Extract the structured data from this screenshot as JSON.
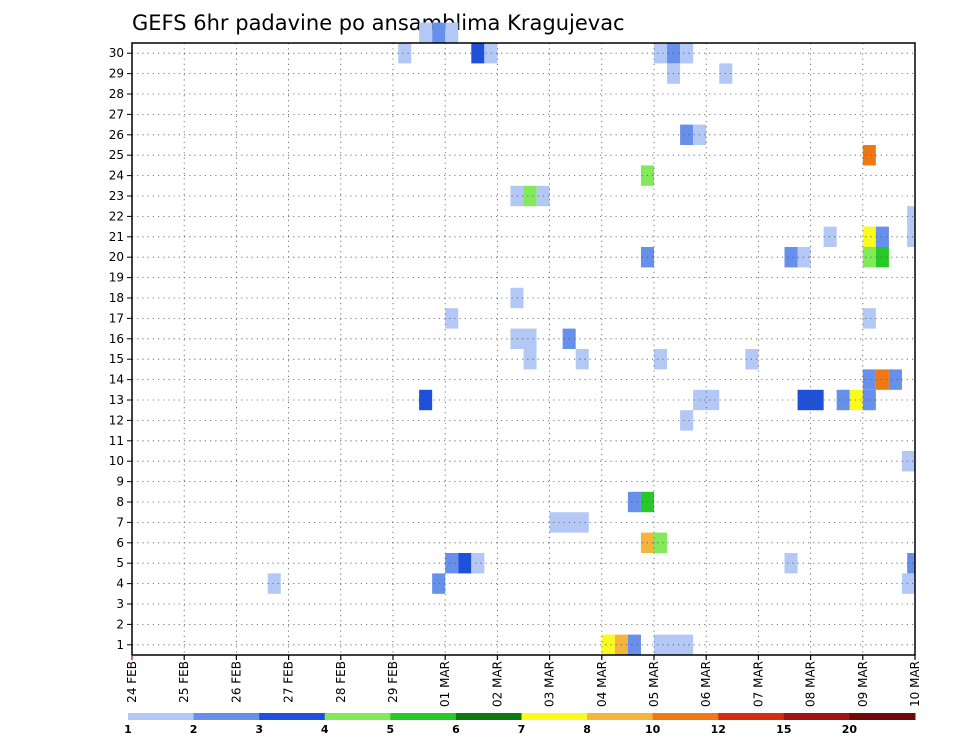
{
  "chart_data": {
    "type": "heatmap",
    "title": "GEFS 6hr padavine po ansamblima Kragujevac",
    "xlabel": "",
    "ylabel": "",
    "y_categories": [
      "1",
      "2",
      "3",
      "4",
      "5",
      "6",
      "7",
      "8",
      "9",
      "10",
      "11",
      "12",
      "13",
      "14",
      "15",
      "16",
      "17",
      "18",
      "19",
      "20",
      "21",
      "22",
      "23",
      "24",
      "25",
      "26",
      "27",
      "28",
      "29",
      "30"
    ],
    "x_tick_labels": [
      "24 FEB",
      "25 FEB",
      "26 FEB",
      "27 FEB",
      "28 FEB",
      "29 FEB",
      "01 MAR",
      "02 MAR",
      "03 MAR",
      "04 MAR",
      "05 MAR",
      "06 MAR",
      "07 MAR",
      "08 MAR",
      "09 MAR",
      "10 MAR"
    ],
    "x_range_days": [
      0,
      15
    ],
    "grid": true,
    "colorbar": {
      "placement": "bottom",
      "labels": [
        "1",
        "2",
        "3",
        "4",
        "5",
        "6",
        "7",
        "8",
        "10",
        "12",
        "15",
        "20"
      ],
      "colors": [
        "#b4c8f5",
        "#6690ea",
        "#1e50dc",
        "#82ea5a",
        "#28c828",
        "#0f780f",
        "#fafa1e",
        "#f5b43c",
        "#f07814",
        "#d22d0f",
        "#a01414",
        "#6e0a0a"
      ]
    },
    "cells": [
      {
        "x": 6.0,
        "w": 0.25,
        "y": 30,
        "c": 0
      },
      {
        "x": 5.75,
        "w": 0.25,
        "y": 30,
        "c": 1
      },
      {
        "x": 5.5,
        "w": 0.25,
        "y": 30,
        "c": 0
      },
      {
        "x": 5.1,
        "w": 0.25,
        "y": 29,
        "c": 0
      },
      {
        "x": 6.5,
        "w": 0.25,
        "y": 29,
        "c": 2
      },
      {
        "x": 6.75,
        "w": 0.25,
        "y": 29,
        "c": 0
      },
      {
        "x": 10.0,
        "w": 0.25,
        "y": 29,
        "c": 0
      },
      {
        "x": 10.25,
        "w": 0.25,
        "y": 29,
        "c": 1
      },
      {
        "x": 10.5,
        "w": 0.25,
        "y": 29,
        "c": 0
      },
      {
        "x": 10.25,
        "w": 0.25,
        "y": 28,
        "c": 0
      },
      {
        "x": 11.25,
        "w": 0.25,
        "y": 28,
        "c": 0
      },
      {
        "x": 10.5,
        "w": 0.25,
        "y": 25,
        "c": 1
      },
      {
        "x": 10.75,
        "w": 0.25,
        "y": 25,
        "c": 0
      },
      {
        "x": 14.0,
        "w": 0.25,
        "y": 24,
        "c": 8
      },
      {
        "x": 9.75,
        "w": 0.25,
        "y": 23,
        "c": 3
      },
      {
        "x": 7.25,
        "w": 0.25,
        "y": 22,
        "c": 0
      },
      {
        "x": 7.5,
        "w": 0.25,
        "y": 22,
        "c": 3
      },
      {
        "x": 7.75,
        "w": 0.25,
        "y": 22,
        "c": 0
      },
      {
        "x": 14.85,
        "w": 0.15,
        "y": 21,
        "c": 0
      },
      {
        "x": 13.25,
        "w": 0.25,
        "y": 20,
        "c": 0
      },
      {
        "x": 14.0,
        "w": 0.25,
        "y": 20,
        "c": 6
      },
      {
        "x": 14.25,
        "w": 0.25,
        "y": 20,
        "c": 1
      },
      {
        "x": 14.85,
        "w": 0.15,
        "y": 20,
        "c": 0
      },
      {
        "x": 9.75,
        "w": 0.25,
        "y": 19,
        "c": 1
      },
      {
        "x": 12.5,
        "w": 0.25,
        "y": 19,
        "c": 1
      },
      {
        "x": 12.75,
        "w": 0.25,
        "y": 19,
        "c": 0
      },
      {
        "x": 14.0,
        "w": 0.25,
        "y": 19,
        "c": 3
      },
      {
        "x": 14.25,
        "w": 0.25,
        "y": 19,
        "c": 4
      },
      {
        "x": 7.25,
        "w": 0.25,
        "y": 17,
        "c": 0
      },
      {
        "x": 6.0,
        "w": 0.25,
        "y": 16,
        "c": 0
      },
      {
        "x": 14.0,
        "w": 0.25,
        "y": 16,
        "c": 0
      },
      {
        "x": 7.25,
        "w": 0.5,
        "y": 15,
        "c": 0
      },
      {
        "x": 8.25,
        "w": 0.25,
        "y": 15,
        "c": 1
      },
      {
        "x": 7.5,
        "w": 0.25,
        "y": 14,
        "c": 0
      },
      {
        "x": 8.5,
        "w": 0.25,
        "y": 14,
        "c": 0
      },
      {
        "x": 10.0,
        "w": 0.25,
        "y": 14,
        "c": 0
      },
      {
        "x": 11.75,
        "w": 0.25,
        "y": 14,
        "c": 0
      },
      {
        "x": 14.0,
        "w": 0.25,
        "y": 13,
        "c": 1
      },
      {
        "x": 14.25,
        "w": 0.25,
        "y": 13,
        "c": 8
      },
      {
        "x": 14.5,
        "w": 0.25,
        "y": 13,
        "c": 1
      },
      {
        "x": 10.75,
        "w": 0.5,
        "y": 12,
        "c": 0
      },
      {
        "x": 5.5,
        "w": 0.25,
        "y": 12,
        "c": 2
      },
      {
        "x": 12.75,
        "w": 0.5,
        "y": 12,
        "c": 2
      },
      {
        "x": 13.5,
        "w": 0.25,
        "y": 12,
        "c": 1
      },
      {
        "x": 13.75,
        "w": 0.25,
        "y": 12,
        "c": 6
      },
      {
        "x": 14.0,
        "w": 0.25,
        "y": 12,
        "c": 1
      },
      {
        "x": 10.5,
        "w": 0.25,
        "y": 11,
        "c": 0
      },
      {
        "x": 14.75,
        "w": 0.25,
        "y": 9,
        "c": 0
      },
      {
        "x": 9.5,
        "w": 0.25,
        "y": 7,
        "c": 1
      },
      {
        "x": 9.75,
        "w": 0.25,
        "y": 7,
        "c": 4
      },
      {
        "x": 8.0,
        "w": 0.75,
        "y": 6,
        "c": 0
      },
      {
        "x": 9.75,
        "w": 0.25,
        "y": 5,
        "c": 7
      },
      {
        "x": 10.0,
        "w": 0.25,
        "y": 5,
        "c": 3
      },
      {
        "x": 6.0,
        "w": 0.25,
        "y": 4,
        "c": 1
      },
      {
        "x": 6.25,
        "w": 0.25,
        "y": 4,
        "c": 2
      },
      {
        "x": 6.5,
        "w": 0.25,
        "y": 4,
        "c": 0
      },
      {
        "x": 12.5,
        "w": 0.25,
        "y": 4,
        "c": 0
      },
      {
        "x": 14.85,
        "w": 0.15,
        "y": 4,
        "c": 1
      },
      {
        "x": 2.6,
        "w": 0.25,
        "y": 3,
        "c": 0
      },
      {
        "x": 5.75,
        "w": 0.25,
        "y": 3,
        "c": 1
      },
      {
        "x": 14.75,
        "w": 0.25,
        "y": 3,
        "c": 0
      },
      {
        "x": 9.0,
        "w": 0.25,
        "y": 0,
        "c": 6
      },
      {
        "x": 9.25,
        "w": 0.25,
        "y": 0,
        "c": 7
      },
      {
        "x": 9.5,
        "w": 0.25,
        "y": 0,
        "c": 1
      },
      {
        "x": 10.0,
        "w": 0.75,
        "y": 0,
        "c": 0
      }
    ]
  }
}
